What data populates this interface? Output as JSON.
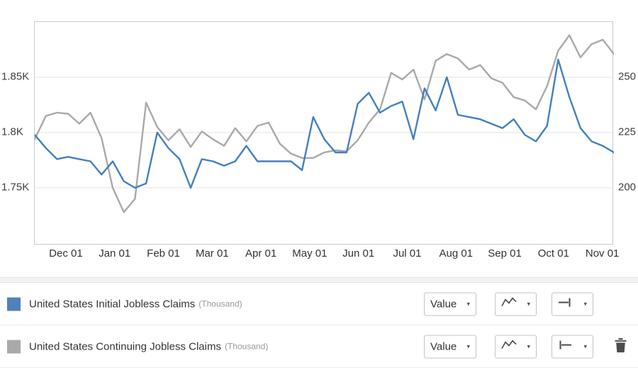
{
  "chart_data": {
    "type": "line",
    "title": "",
    "x_unit": "weekly observations, mid-Nov to early-Nov",
    "x_tick_labels": [
      "Dec 01",
      "Jan 01",
      "Feb 01",
      "Mar 01",
      "Apr 01",
      "May 01",
      "Jun 01",
      "Jul 01",
      "Aug 01",
      "Sep 01",
      "Oct 01",
      "Nov 01"
    ],
    "x_tick_start_frac": 0.055,
    "x_tick_step_frac": 0.0842,
    "grid": "horizontal",
    "left_axis": {
      "ticks": [
        "1.85K",
        "1.8K",
        "1.75K"
      ],
      "tick_values": [
        1.85,
        1.8,
        1.75
      ],
      "range": [
        1.698,
        1.9
      ]
    },
    "right_axis": {
      "ticks": [
        "250",
        "225",
        "200"
      ],
      "tick_values": [
        250,
        225,
        200
      ],
      "range": [
        174,
        275
      ]
    },
    "series": [
      {
        "name": "United States Initial Jobless Claims",
        "unit": "Thousand",
        "axis": "right",
        "color": "#4380bd",
        "values": [
          224,
          218,
          213,
          214,
          213,
          212,
          206,
          212,
          203,
          200,
          202,
          225,
          218,
          213,
          200,
          213,
          212,
          210,
          212,
          219,
          212,
          212,
          212,
          212,
          208,
          232,
          222,
          216,
          216,
          238,
          243,
          234,
          237,
          239,
          222,
          245,
          235,
          250,
          233,
          232,
          231,
          229,
          227,
          231,
          224,
          221,
          228,
          258,
          241,
          227,
          221,
          219,
          216
        ]
      },
      {
        "name": "United States Continuing Jobless Claims",
        "unit": "Thousand",
        "axis": "left",
        "color": "#a9a9a9",
        "values": [
          1.794,
          1.815,
          1.818,
          1.817,
          1.808,
          1.818,
          1.795,
          1.75,
          1.728,
          1.74,
          1.827,
          1.805,
          1.793,
          1.803,
          1.787,
          1.801,
          1.794,
          1.788,
          1.804,
          1.792,
          1.806,
          1.809,
          1.79,
          1.781,
          1.777,
          1.777,
          1.782,
          1.784,
          1.783,
          1.793,
          1.809,
          1.821,
          1.854,
          1.848,
          1.857,
          1.83,
          1.865,
          1.871,
          1.867,
          1.857,
          1.861,
          1.849,
          1.845,
          1.832,
          1.829,
          1.821,
          1.842,
          1.874,
          1.888,
          1.868,
          1.88,
          1.884,
          1.871
        ]
      }
    ],
    "legend_position": "bottom"
  },
  "legend": {
    "rows": [
      {
        "swatch_color": "#4f81bd",
        "label": "United States Initial Jobless Claims",
        "unit_note": "(Thousand)",
        "value_label": "Value"
      },
      {
        "swatch_color": "#a9a9a9",
        "label": "United States Continuing Jobless Claims",
        "unit_note": "(Thousand)",
        "value_label": "Value"
      }
    ]
  },
  "icons": {
    "caret_down": "▾"
  }
}
